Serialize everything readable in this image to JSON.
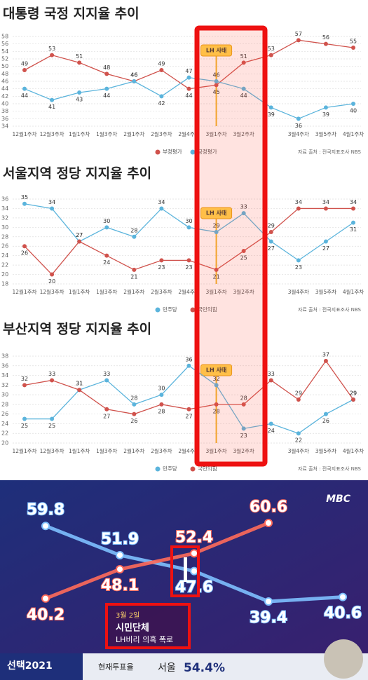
{
  "chart_data": [
    {
      "type": "line",
      "title": "대통령 국정 지지율 추이",
      "categories": [
        "12월1주차",
        "12월3주차",
        "1월1주차",
        "1월3주차",
        "2월1주차",
        "2월3주차",
        "2월4주차",
        "3월1주차",
        "3월2주차",
        null,
        "3월4주차",
        "3월5주차",
        "4월1주차"
      ],
      "series": [
        {
          "name": "부정평가",
          "color": "#d0524c",
          "values": [
            49,
            53,
            51,
            48,
            46,
            49,
            44,
            45,
            51,
            53,
            57,
            56,
            55
          ]
        },
        {
          "name": "긍정평가",
          "color": "#5bb4dc",
          "values": [
            44,
            41,
            43,
            44,
            46,
            42,
            47,
            46,
            44,
            39,
            36,
            39,
            40
          ]
        }
      ],
      "ylim": [
        34,
        58
      ],
      "yticks": [
        34,
        36,
        38,
        40,
        42,
        44,
        46,
        48,
        50,
        52,
        54,
        56,
        58
      ],
      "grid": true,
      "annotation": "LH 사태",
      "source": "자료 출처 : 전국지표조사 NBS"
    },
    {
      "type": "line",
      "title": "서울지역 정당 지지율 추이",
      "categories": [
        "12월1주차",
        "12월3주차",
        "1월1주차",
        "1월3주차",
        "2월1주차",
        "2월3주차",
        "2월4주차",
        "3월1주차",
        "3월2주차",
        null,
        "3월4주차",
        "3월5주차",
        "4월1주차"
      ],
      "series": [
        {
          "name": "민주당",
          "color": "#5bb4dc",
          "values": [
            35,
            34,
            27,
            30,
            28,
            34,
            30,
            29,
            33,
            27,
            23,
            27,
            31
          ]
        },
        {
          "name": "국민의힘",
          "color": "#d0524c",
          "values": [
            26,
            20,
            27,
            24,
            21,
            23,
            23,
            21,
            25,
            29,
            34,
            34,
            34
          ]
        }
      ],
      "ylim": [
        18,
        36
      ],
      "yticks": [
        18,
        20,
        22,
        24,
        26,
        28,
        30,
        32,
        34,
        36
      ],
      "grid": true,
      "annotation": "LH 사태",
      "source": "자료 출처 : 전국지표조사 NBS"
    },
    {
      "type": "line",
      "title": "부산지역 정당 지지율 추이",
      "categories": [
        "12월1주차",
        "12월3주차",
        "1월1주차",
        "1월3주차",
        "2월1주차",
        "2월3주차",
        "2월4주차",
        "3월1주차",
        "3월2주차",
        null,
        "3월4주차",
        "3월5주차",
        "4월1주차"
      ],
      "series": [
        {
          "name": "민주당",
          "color": "#5bb4dc",
          "values": [
            25,
            25,
            31,
            33,
            28,
            30,
            36,
            32,
            23,
            24,
            22,
            26,
            29
          ]
        },
        {
          "name": "국민의힘",
          "color": "#d0524c",
          "values": [
            32,
            33,
            31,
            27,
            26,
            28,
            27,
            28,
            28,
            33,
            29,
            37,
            29
          ]
        }
      ],
      "ylim": [
        20,
        38
      ],
      "yticks": [
        20,
        22,
        24,
        26,
        28,
        30,
        32,
        34,
        36,
        38
      ],
      "grid": true,
      "annotation": "LH 사태",
      "source": "자료 출처 : 전국지표조사 NBS"
    },
    {
      "type": "tvline",
      "categories": [
        null,
        null,
        null,
        null,
        null
      ],
      "series": [
        {
          "color": "#7ec0ff",
          "values": [
            59.8,
            51.9,
            47.6,
            39.4,
            40.6
          ]
        },
        {
          "color": "#ff6a5a",
          "values": [
            40.2,
            48.1,
            52.4,
            60.6,
            null
          ]
        }
      ]
    }
  ],
  "broadcast": {
    "logo": "MBC",
    "brand": "선택2021",
    "turnout_label": "현재투표율",
    "region": "서울",
    "turnout": "54.4%",
    "event_date": "3월 2일",
    "event_title": "시민단체",
    "event_desc": "LH비리 의혹 폭로"
  }
}
